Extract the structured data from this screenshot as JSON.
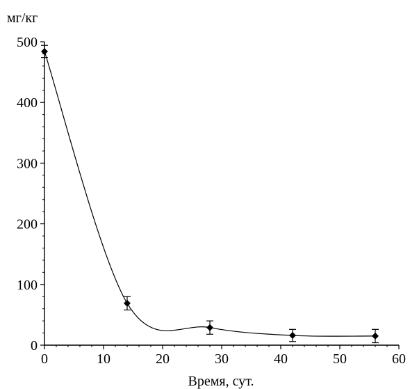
{
  "chart_data": {
    "type": "line",
    "ylabel": "мг/кг",
    "xlabel": "Время, сут.",
    "xlim": [
      0,
      60
    ],
    "ylim": [
      0,
      500
    ],
    "x_ticks": [
      0,
      10,
      20,
      30,
      40,
      50,
      60
    ],
    "y_ticks": [
      0,
      100,
      200,
      300,
      400,
      500
    ],
    "x_tick_labels": [
      "0",
      "10",
      "20",
      "30",
      "40",
      "50",
      "60"
    ],
    "y_tick_labels": [
      "0",
      "100",
      "200",
      "300",
      "400",
      "500"
    ],
    "grid": false,
    "marker": "diamond",
    "colors": {
      "line": "#000000",
      "marker": "#000000"
    },
    "series": [
      {
        "points": [
          {
            "x": 0,
            "y": 484,
            "err": 10
          },
          {
            "x": 14,
            "y": 69,
            "err": 11
          },
          {
            "x": 28,
            "y": 29,
            "err": 11
          },
          {
            "x": 42,
            "y": 16,
            "err": 10
          },
          {
            "x": 56,
            "y": 15,
            "err": 11
          }
        ]
      }
    ]
  }
}
